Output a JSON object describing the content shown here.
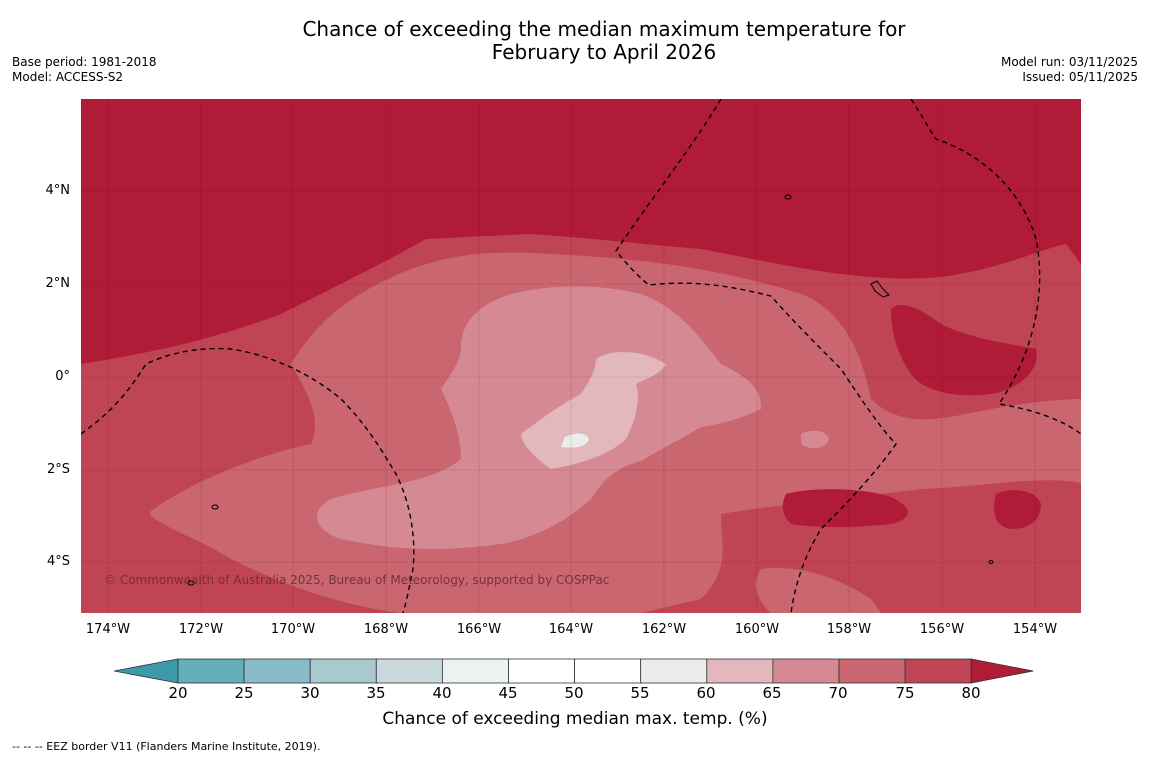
{
  "title_line1": "Chance of exceeding the median maximum temperature for",
  "title_line2": "February to April 2026",
  "base_period": "Base period: 1981-2018",
  "model": "Model: ACCESS-S2",
  "model_run": "Model run: 03/11/2025",
  "issued": "Issued: 05/11/2025",
  "copyright": "© Commonwealth of Australia 2025, Bureau of Meteorology, supported by COSPPac",
  "lat_labels": [
    "4°N",
    "2°N",
    "0°",
    "2°S",
    "4°S"
  ],
  "lon_labels": [
    "174°W",
    "172°W",
    "170°W",
    "168°W",
    "166°W",
    "164°W",
    "162°W",
    "160°W",
    "158°W",
    "156°W",
    "154°W"
  ],
  "colorbar": {
    "title": "Chance of exceeding median max. temp. (%)",
    "ticks": [
      "20",
      "25",
      "30",
      "35",
      "40",
      "45",
      "50",
      "55",
      "60",
      "65",
      "70",
      "75",
      "80"
    ],
    "colors": [
      "#3c9aaa",
      "#65aebb",
      "#87bcc6",
      "#a8c9ce",
      "#cad9dc",
      "#ecf1f2",
      "#ffffff",
      "#ffffff",
      "#ececec",
      "#e2b8bd",
      "#d58a93",
      "#c96670",
      "#c04554",
      "#b01c37"
    ]
  },
  "map_colors": {
    "band_above_80": "#b01c37",
    "band_75_80": "#c04554",
    "band_70_75": "#c96670",
    "band_65_70": "#d58a93",
    "band_60_65": "#e2b8bd",
    "band_55_60": "#ececec"
  },
  "legend_note": "-- -- -- EEZ border V11 (Flanders Marine Institute, 2019)."
}
